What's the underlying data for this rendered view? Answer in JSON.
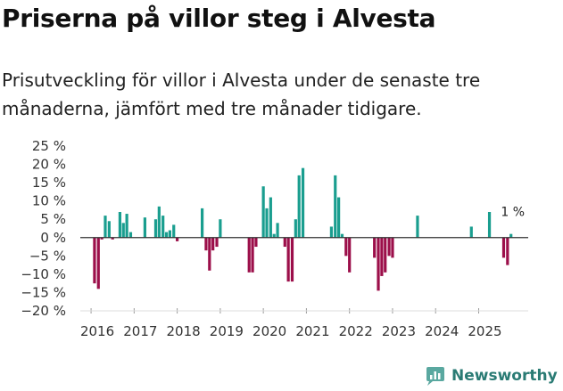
{
  "title": "Priserna på villor steg i Alvesta",
  "subtitle": "Prisutveckling för villor i Alvesta under de senaste tre månaderna, jämfört med tre månader tidigare.",
  "brand": "Newsworthy",
  "colors": {
    "positive": "#1a9e8f",
    "negative": "#9c0f4a",
    "axis": "#333333",
    "grid": "#cccccc",
    "brand": "#2a7b74"
  },
  "chart_data": {
    "type": "bar",
    "title": "Priserna på villor steg i Alvesta",
    "xlabel": "",
    "ylabel": "",
    "ylim": [
      -20,
      25
    ],
    "yticks": [
      -20,
      -15,
      -10,
      -5,
      0,
      5,
      10,
      15,
      20,
      25
    ],
    "ytick_labels": [
      "−20 %",
      "−15 %",
      "−10 %",
      "−5 %",
      "0 %",
      "5 %",
      "10 %",
      "15 %",
      "20 %",
      "25 %"
    ],
    "xtick_labels": [
      "2016",
      "2017",
      "2018",
      "2019",
      "2020",
      "2021",
      "2022",
      "2023",
      "2024",
      "2025"
    ],
    "series": [
      {
        "name": "Prisutveckling",
        "points": [
          {
            "x": 2016.08,
            "y": -12.5
          },
          {
            "x": 2016.17,
            "y": -14
          },
          {
            "x": 2016.25,
            "y": -0.5
          },
          {
            "x": 2016.33,
            "y": 6
          },
          {
            "x": 2016.42,
            "y": 4.5
          },
          {
            "x": 2016.5,
            "y": -0.5
          },
          {
            "x": 2016.67,
            "y": 7
          },
          {
            "x": 2016.75,
            "y": 4
          },
          {
            "x": 2016.83,
            "y": 6.5
          },
          {
            "x": 2016.92,
            "y": 1.5
          },
          {
            "x": 2017.25,
            "y": 5.5
          },
          {
            "x": 2017.5,
            "y": 5
          },
          {
            "x": 2017.58,
            "y": 8.5
          },
          {
            "x": 2017.67,
            "y": 6
          },
          {
            "x": 2017.75,
            "y": 1.5
          },
          {
            "x": 2017.83,
            "y": 2
          },
          {
            "x": 2017.92,
            "y": 3.5
          },
          {
            "x": 2018.0,
            "y": -1
          },
          {
            "x": 2018.58,
            "y": 8
          },
          {
            "x": 2018.67,
            "y": -3.5
          },
          {
            "x": 2018.75,
            "y": -9
          },
          {
            "x": 2018.83,
            "y": -3.5
          },
          {
            "x": 2018.92,
            "y": -2.5
          },
          {
            "x": 2019.0,
            "y": 5
          },
          {
            "x": 2019.67,
            "y": -9.5
          },
          {
            "x": 2019.75,
            "y": -9.5
          },
          {
            "x": 2019.83,
            "y": -2.5
          },
          {
            "x": 2020.0,
            "y": 14
          },
          {
            "x": 2020.08,
            "y": 8
          },
          {
            "x": 2020.17,
            "y": 11
          },
          {
            "x": 2020.25,
            "y": 1
          },
          {
            "x": 2020.33,
            "y": 4
          },
          {
            "x": 2020.5,
            "y": -2.5
          },
          {
            "x": 2020.58,
            "y": -12
          },
          {
            "x": 2020.67,
            "y": -12
          },
          {
            "x": 2020.75,
            "y": 5
          },
          {
            "x": 2020.83,
            "y": 17
          },
          {
            "x": 2020.92,
            "y": 19
          },
          {
            "x": 2021.58,
            "y": 3
          },
          {
            "x": 2021.67,
            "y": 17
          },
          {
            "x": 2021.75,
            "y": 11
          },
          {
            "x": 2021.83,
            "y": 1
          },
          {
            "x": 2021.92,
            "y": -5
          },
          {
            "x": 2022.0,
            "y": -9.5
          },
          {
            "x": 2022.58,
            "y": -5.5
          },
          {
            "x": 2022.67,
            "y": -14.5
          },
          {
            "x": 2022.75,
            "y": -10.5
          },
          {
            "x": 2022.83,
            "y": -9.5
          },
          {
            "x": 2022.92,
            "y": -5
          },
          {
            "x": 2023.0,
            "y": -5.5
          },
          {
            "x": 2023.58,
            "y": 6
          },
          {
            "x": 2024.83,
            "y": 3
          },
          {
            "x": 2025.25,
            "y": 7
          },
          {
            "x": 2025.58,
            "y": -5.5
          },
          {
            "x": 2025.67,
            "y": -7.5
          },
          {
            "x": 2025.75,
            "y": 1
          }
        ]
      }
    ],
    "annotations": [
      {
        "x": 2025.75,
        "y": 1,
        "text": "1 %"
      }
    ]
  }
}
